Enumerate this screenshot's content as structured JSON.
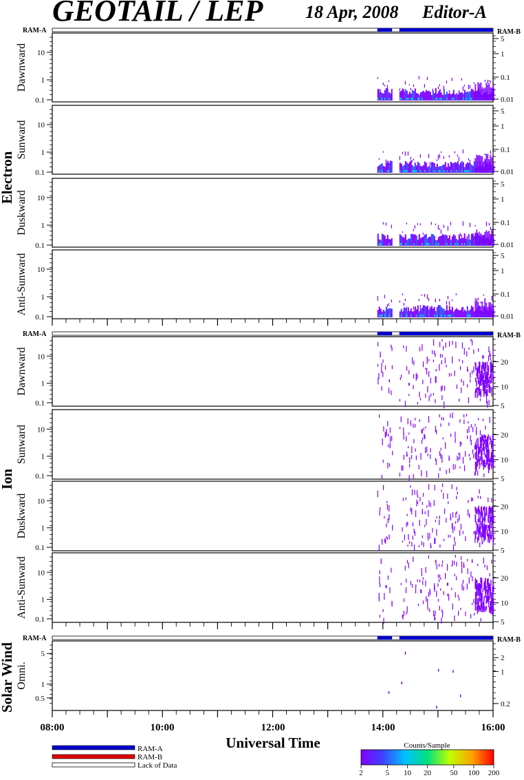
{
  "header": {
    "title": "GEOTAIL / LEP",
    "date": "18 Apr, 2008",
    "edition": "Editor-A"
  },
  "ram_labels": {
    "a": "RAM-A",
    "b": "RAM-B"
  },
  "groups": {
    "electron": "Electron",
    "ion": "Ion",
    "solar_wind": "Solar Wind"
  },
  "panel_labels": {
    "dawn": "Dawnward",
    "sun": "Sunward",
    "dusk": "Duskward",
    "anti": "Anti-Sunward",
    "omni": "Omni."
  },
  "colors": {
    "ram_a": "#0000cc",
    "ram_b": "#dd0000",
    "violet": "#8000ff",
    "blue": "#3050ff",
    "cyan": "#00c8e0"
  },
  "chart_data": [
    {
      "type": "heatmap",
      "title": "GEOTAIL / LEP",
      "subtitle": "18 Apr, 2008   Editor-A",
      "xlabel": "Universal Time",
      "x_ticks": [
        "08:00",
        "10:00",
        "12:00",
        "14:00",
        "16:00"
      ],
      "x_range": [
        "08:00",
        "16:00"
      ],
      "mode_bar": {
        "ram_a_intervals": [
          [
            "13:54",
            "14:10"
          ],
          [
            "14:18",
            "16:00"
          ]
        ],
        "lack_of_data_intervals": [
          [
            "08:00",
            "13:54"
          ],
          [
            "14:10",
            "14:18"
          ]
        ]
      },
      "electron": {
        "left_axis_ticks": [
          "10",
          "1",
          "0.1"
        ],
        "right_axis_ticks": [
          "5",
          "1",
          "0.1",
          "0.01"
        ],
        "panels": [
          "Dawnward",
          "Sunward",
          "Duskward",
          "Anti-Sunward"
        ],
        "data_intervals": [
          [
            "13:54",
            "14:10"
          ],
          [
            "14:18",
            "16:00"
          ]
        ],
        "dominant_energy_range": [
          0.1,
          0.5
        ]
      },
      "ion": {
        "left_axis_ticks": [
          "10",
          "1",
          "0.1"
        ],
        "right_axis_ticks": [
          "20",
          "10",
          "5"
        ],
        "panels": [
          "Dawnward",
          "Sunward",
          "Duskward",
          "Anti-Sunward"
        ],
        "data_intervals": [
          [
            "13:54",
            "14:10"
          ],
          [
            "14:18",
            "16:00"
          ]
        ],
        "dominant_time_range": [
          "15:40",
          "16:00"
        ]
      },
      "solar_wind": {
        "panel": "Omni.",
        "left_axis_ticks": [
          "5",
          "1",
          "0.5"
        ],
        "right_axis_ticks": [
          "2",
          "1",
          "0.2"
        ],
        "sparse_points": [
          [
            "14:06",
            0.7
          ],
          [
            "14:20",
            1.1
          ],
          [
            "14:24",
            4.5
          ],
          [
            "14:58",
            0.35
          ],
          [
            "15:00",
            2.0
          ],
          [
            "15:16",
            1.9
          ],
          [
            "15:24",
            0.6
          ]
        ]
      }
    },
    {
      "type": "colorbar",
      "title": "Counts/Sample",
      "ticks": [
        "2",
        "5",
        "10",
        "20",
        "50",
        "100",
        "200"
      ],
      "range": [
        2,
        200
      ],
      "scale": "log",
      "colors": [
        "#8000ff",
        "#4040ff",
        "#00c0ff",
        "#00e080",
        "#c0ff00",
        "#ffa000",
        "#ff0000"
      ]
    }
  ],
  "legend": {
    "items": [
      {
        "label": "RAM-A",
        "color": "#0000cc"
      },
      {
        "label": "RAM-B",
        "color": "#dd0000"
      },
      {
        "label": "Lack of Data",
        "color": "#ffffff"
      }
    ]
  }
}
